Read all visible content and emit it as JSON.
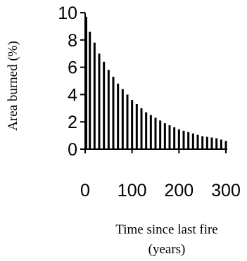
{
  "chart_data": {
    "type": "bar",
    "title": "",
    "xlabel_lines": [
      "Time since last fire",
      "(years)"
    ],
    "ylabel": "Area burned (%)",
    "xlim": [
      0,
      300
    ],
    "ylim": [
      0,
      10
    ],
    "xticks": [
      0,
      100,
      200,
      300
    ],
    "yticks": [
      0,
      2,
      4,
      6,
      8,
      10
    ],
    "grid": false,
    "legend": "none",
    "colors": {
      "bar": "#000000",
      "axis": "#000000",
      "background": "#ffffff"
    },
    "x": [
      0,
      10,
      20,
      30,
      40,
      50,
      60,
      70,
      80,
      90,
      100,
      110,
      120,
      130,
      140,
      150,
      160,
      170,
      180,
      190,
      200,
      210,
      220,
      230,
      240,
      250,
      260,
      270,
      280,
      290,
      300
    ],
    "values": [
      9.7,
      8.6,
      7.8,
      7.0,
      6.4,
      5.8,
      5.3,
      4.8,
      4.4,
      4.0,
      3.6,
      3.3,
      3.0,
      2.7,
      2.5,
      2.3,
      2.1,
      1.9,
      1.75,
      1.6,
      1.45,
      1.35,
      1.25,
      1.15,
      1.05,
      0.95,
      0.9,
      0.85,
      0.8,
      0.7,
      0.6
    ]
  }
}
